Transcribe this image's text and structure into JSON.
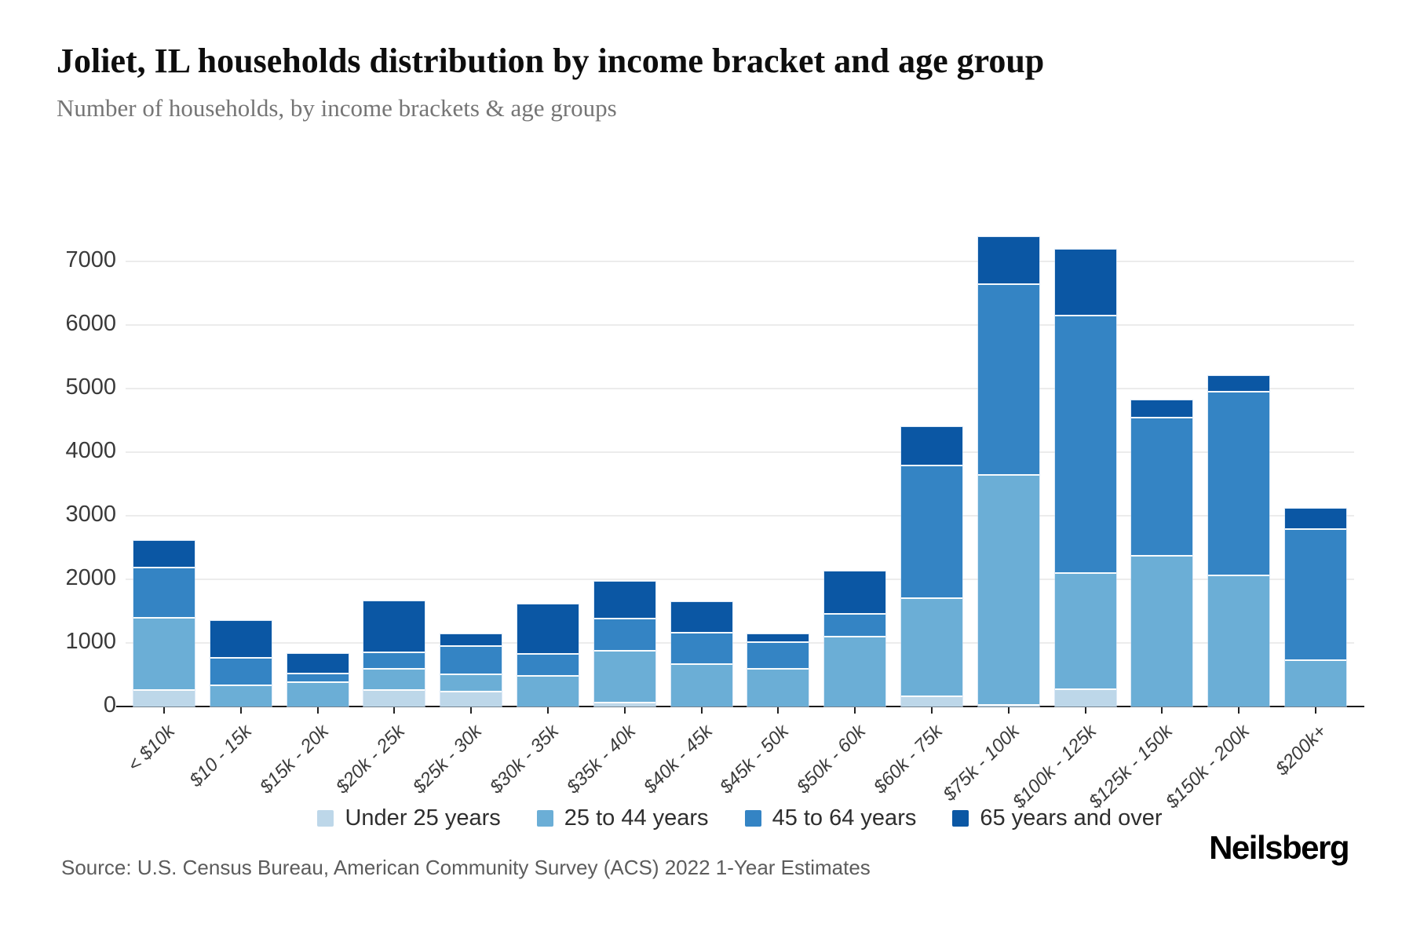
{
  "header": {
    "title": "Joliet, IL households distribution by income bracket and age group",
    "subtitle": "Number of households, by income brackets & age groups"
  },
  "footer": {
    "source": "Source: U.S. Census Bureau, American Community Survey (ACS) 2022 1-Year Estimates",
    "brand": "Neilsberg"
  },
  "chart_data": {
    "type": "bar",
    "stacked": true,
    "title": "Joliet, IL households distribution by income bracket and age group",
    "xlabel": "",
    "ylabel": "",
    "ylim": [
      0,
      7500
    ],
    "yticks": [
      0,
      1000,
      2000,
      3000,
      4000,
      5000,
      6000,
      7000
    ],
    "grid": true,
    "legend_position": "bottom",
    "categories": [
      "< $10k",
      "$10 - 15k",
      "$15k - 20k",
      "$20k - 25k",
      "$25k - 30k",
      "$30k - 35k",
      "$35k - 40k",
      "$40k - 45k",
      "$45k - 50k",
      "$50k - 60k",
      "$60k - 75k",
      "$75k - 100k",
      "$100k - 125k",
      "$125k - 150k",
      "$150k - 200k",
      "$200k+"
    ],
    "series": [
      {
        "name": "Under 25 years",
        "color": "#bdd7e9",
        "values": [
          270,
          0,
          0,
          270,
          250,
          0,
          80,
          0,
          0,
          0,
          170,
          40,
          280,
          0,
          0,
          0
        ]
      },
      {
        "name": "25 to 44 years",
        "color": "#6baed6",
        "values": [
          1140,
          350,
          400,
          330,
          270,
          490,
          810,
          680,
          600,
          1110,
          1550,
          3610,
          1830,
          2380,
          2070,
          740
        ]
      },
      {
        "name": "45 to 64 years",
        "color": "#3484c4",
        "values": [
          790,
          430,
          130,
          260,
          440,
          350,
          510,
          490,
          420,
          360,
          2080,
          3010,
          4050,
          2180,
          2890,
          2060
        ]
      },
      {
        "name": "65 years and over",
        "color": "#0b57a4",
        "values": [
          400,
          570,
          300,
          790,
          180,
          770,
          560,
          470,
          120,
          650,
          600,
          720,
          1030,
          250,
          240,
          310
        ]
      }
    ],
    "totals": [
      2600,
      1350,
      830,
      1650,
      1140,
      1610,
      1960,
      1640,
      1140,
      2120,
      4400,
      7380,
      7190,
      4810,
      5200,
      3110
    ]
  }
}
